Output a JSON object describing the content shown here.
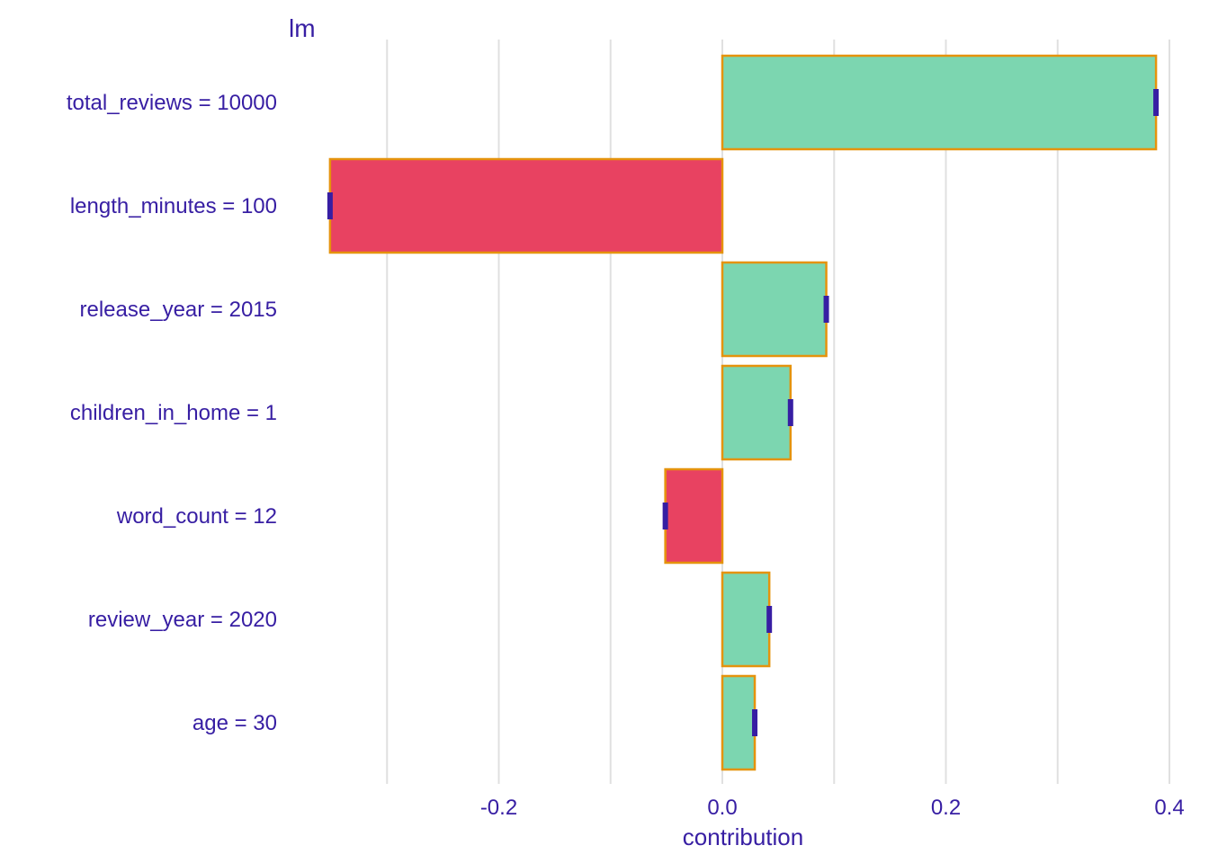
{
  "chart_data": {
    "type": "bar",
    "orientation": "horizontal",
    "title": "lm",
    "xlabel": "contribution",
    "ylabel": "",
    "xlim": [
      -0.38,
      0.41
    ],
    "xticks": [
      -0.2,
      0.0,
      0.2,
      0.4
    ],
    "xtick_labels": [
      "-0.2",
      "0.0",
      "0.2",
      "0.4"
    ],
    "gridlines_at": [
      -0.3,
      -0.2,
      -0.1,
      0.0,
      0.1,
      0.2,
      0.3,
      0.4
    ],
    "grid": true,
    "legend": false,
    "categories": [
      "total_reviews = 10000",
      "length_minutes = 100",
      "release_year = 2015",
      "children_in_home = 1",
      "word_count = 12",
      "review_year = 2020",
      "age = 30"
    ],
    "values": [
      0.388,
      -0.351,
      0.093,
      0.061,
      -0.051,
      0.042,
      0.029
    ],
    "colors": {
      "positive": "#7cd6b0",
      "negative": "#e84261",
      "bar_border": "#e5930d",
      "marker": "#371ea3",
      "text": "#371ea3",
      "grid": "#e0e0e0"
    }
  }
}
